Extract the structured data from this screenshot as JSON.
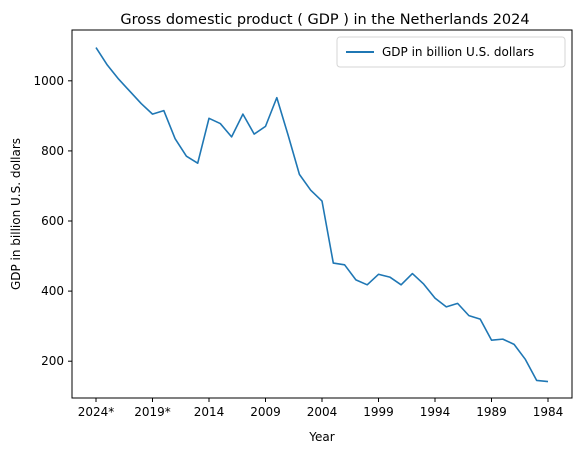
{
  "chart_data": {
    "type": "line",
    "title": "Gross domestic product ( GDP ) in the Netherlands 2024",
    "xlabel": "Year",
    "ylabel": "GDP in billion U.S. dollars",
    "x": [
      "2024*",
      "2023",
      "2022",
      "2021",
      "2020",
      "2019*",
      "2018",
      "2017",
      "2016",
      "2015",
      "2014",
      "2013",
      "2012",
      "2011",
      "2010",
      "2009",
      "2008",
      "2007",
      "2006",
      "2005",
      "2004",
      "2003",
      "2002",
      "2001",
      "2000",
      "1999",
      "1998",
      "1997",
      "1996",
      "1995",
      "1994",
      "1993",
      "1992",
      "1991",
      "1990",
      "1989",
      "1988",
      "1987",
      "1986",
      "1985",
      "1984"
    ],
    "x_ticks": [
      "2024*",
      "2019*",
      "2014",
      "2009",
      "2004",
      "1999",
      "1994",
      "1989",
      "1984"
    ],
    "y_ticks": [
      200,
      400,
      600,
      800,
      1000
    ],
    "ylim": [
      95,
      1145
    ],
    "series": [
      {
        "name": "GDP in billion U.S. dollars",
        "color": "#1f77b4",
        "values": [
          1095,
          1045,
          1005,
          970,
          935,
          905,
          915,
          835,
          785,
          765,
          893,
          878,
          840,
          905,
          848,
          870,
          952,
          845,
          733,
          688,
          657,
          480,
          475,
          432,
          418,
          448,
          440,
          418,
          450,
          420,
          380,
          355,
          365,
          330,
          320,
          260,
          263,
          248,
          205,
          145,
          142
        ]
      }
    ],
    "legend": {
      "position": "top-right",
      "entries": [
        "GDP in billion U.S. dollars"
      ]
    },
    "grid": false
  }
}
